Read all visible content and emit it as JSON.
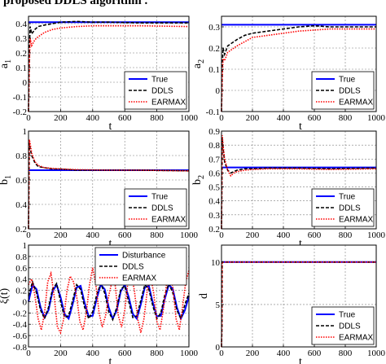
{
  "caption": "proposed DDLS algorithm .",
  "colors": {
    "true": "#0000ff",
    "ddls": "#000000",
    "earmax": "#ff0000",
    "grid": "#7f7f7f"
  },
  "chart_data": [
    {
      "type": "line",
      "id": "a1",
      "xlabel": "t",
      "ylabel": "a",
      "ylabel_sub": "1",
      "xlim": [
        0,
        1000
      ],
      "ylim": [
        -0.2,
        0.45
      ],
      "xticks": [
        0,
        200,
        400,
        600,
        800,
        1000
      ],
      "yticks": [
        -0.2,
        -0.1,
        0,
        0.1,
        0.2,
        0.3,
        0.4
      ],
      "ytick_labels": [
        "-0.2",
        "-0.1",
        "0",
        "0.1",
        "0.2",
        "0.3",
        "0.4"
      ],
      "legend_position": "bottom-right",
      "series": [
        {
          "name": "True",
          "x": [
            0,
            1000
          ],
          "y": [
            0.41,
            0.41
          ]
        },
        {
          "name": "DDLS",
          "x": [
            0,
            5,
            10,
            20,
            40,
            60,
            100,
            150,
            200,
            300,
            400,
            500,
            700,
            1000
          ],
          "y": [
            -0.2,
            0.2,
            0.38,
            0.33,
            0.36,
            0.38,
            0.39,
            0.4,
            0.41,
            0.415,
            0.41,
            0.41,
            0.405,
            0.405
          ]
        },
        {
          "name": "EARMAX",
          "x": [
            0,
            5,
            10,
            20,
            40,
            60,
            100,
            150,
            200,
            300,
            400,
            500,
            700,
            1000
          ],
          "y": [
            -0.2,
            0.1,
            0.3,
            0.25,
            0.29,
            0.31,
            0.34,
            0.36,
            0.37,
            0.38,
            0.385,
            0.385,
            0.385,
            0.38
          ]
        }
      ]
    },
    {
      "type": "line",
      "id": "a2",
      "xlabel": "t",
      "ylabel": "a",
      "ylabel_sub": "2",
      "xlim": [
        0,
        1000
      ],
      "ylim": [
        -0.1,
        0.35
      ],
      "xticks": [
        0,
        200,
        400,
        600,
        800,
        1000
      ],
      "yticks": [
        -0.1,
        0,
        0.1,
        0.2,
        0.3
      ],
      "ytick_labels": [
        "-0.1",
        "0",
        "0.1",
        "0.2",
        "0.3"
      ],
      "legend_position": "bottom-right",
      "series": [
        {
          "name": "True",
          "x": [
            0,
            1000
          ],
          "y": [
            0.31,
            0.31
          ]
        },
        {
          "name": "DDLS",
          "x": [
            0,
            5,
            10,
            20,
            40,
            80,
            100,
            150,
            200,
            300,
            400,
            500,
            600,
            700,
            1000
          ],
          "y": [
            -0.1,
            0.1,
            0.2,
            0.17,
            0.21,
            0.23,
            0.24,
            0.26,
            0.27,
            0.28,
            0.29,
            0.3,
            0.305,
            0.3,
            0.3
          ]
        },
        {
          "name": "EARMAX",
          "x": [
            0,
            5,
            10,
            20,
            40,
            80,
            100,
            150,
            200,
            300,
            400,
            500,
            600,
            700,
            1000
          ],
          "y": [
            -0.1,
            0.05,
            0.15,
            0.14,
            0.18,
            0.2,
            0.21,
            0.23,
            0.25,
            0.26,
            0.27,
            0.28,
            0.285,
            0.29,
            0.29
          ]
        }
      ]
    },
    {
      "type": "line",
      "id": "b1",
      "xlabel": "t",
      "ylabel": "b",
      "ylabel_sub": "1",
      "xlim": [
        0,
        1000
      ],
      "ylim": [
        0.2,
        1.0
      ],
      "xticks": [
        0,
        200,
        400,
        600,
        800,
        1000
      ],
      "yticks": [
        0.2,
        0.4,
        0.6,
        0.8,
        1
      ],
      "ytick_labels": [
        "0.2",
        "0.4",
        "0.6",
        "0.8",
        "1"
      ],
      "legend_position": "bottom-right",
      "series": [
        {
          "name": "True",
          "x": [
            0,
            1000
          ],
          "y": [
            0.68,
            0.68
          ]
        },
        {
          "name": "DDLS",
          "x": [
            0,
            3,
            5,
            10,
            20,
            40,
            60,
            100,
            150,
            200,
            300,
            500,
            700,
            1000
          ],
          "y": [
            0.2,
            0.6,
            0.9,
            0.86,
            0.8,
            0.74,
            0.71,
            0.7,
            0.69,
            0.69,
            0.68,
            0.68,
            0.68,
            0.675
          ]
        },
        {
          "name": "EARMAX",
          "x": [
            0,
            3,
            5,
            10,
            20,
            40,
            60,
            100,
            150,
            200,
            300,
            500,
            700,
            1000
          ],
          "y": [
            0.2,
            0.6,
            0.93,
            0.9,
            0.82,
            0.75,
            0.72,
            0.7,
            0.695,
            0.69,
            0.685,
            0.68,
            0.68,
            0.675
          ]
        }
      ]
    },
    {
      "type": "line",
      "id": "b2",
      "xlabel": "t",
      "ylabel": "b",
      "ylabel_sub": "2",
      "xlim": [
        0,
        1000
      ],
      "ylim": [
        0.2,
        0.9
      ],
      "xticks": [
        0,
        200,
        400,
        600,
        800,
        1000
      ],
      "yticks": [
        0.2,
        0.3,
        0.4,
        0.5,
        0.6,
        0.7,
        0.8,
        0.9
      ],
      "ytick_labels": [
        "0.2",
        "0.3",
        "0.4",
        "0.5",
        "0.6",
        "0.7",
        "0.8",
        "0.9"
      ],
      "legend_position": "bottom-right",
      "series": [
        {
          "name": "True",
          "x": [
            0,
            1000
          ],
          "y": [
            0.64,
            0.64
          ]
        },
        {
          "name": "DDLS",
          "x": [
            0,
            3,
            5,
            10,
            20,
            40,
            60,
            80,
            100,
            150,
            200,
            300,
            500,
            700,
            1000
          ],
          "y": [
            0.2,
            0.6,
            0.85,
            0.78,
            0.68,
            0.62,
            0.6,
            0.61,
            0.62,
            0.63,
            0.63,
            0.635,
            0.635,
            0.63,
            0.635
          ]
        },
        {
          "name": "EARMAX",
          "x": [
            0,
            3,
            5,
            10,
            20,
            40,
            60,
            80,
            100,
            150,
            200,
            300,
            500,
            700,
            1000
          ],
          "y": [
            0.2,
            0.6,
            0.87,
            0.8,
            0.7,
            0.62,
            0.58,
            0.6,
            0.61,
            0.62,
            0.625,
            0.63,
            0.63,
            0.625,
            0.63
          ]
        }
      ]
    },
    {
      "type": "line",
      "id": "xi",
      "xlabel": "t",
      "ylabel": "ξ(t)",
      "ylabel_sub": "",
      "xlim": [
        0,
        1000
      ],
      "ylim": [
        -0.8,
        1.0
      ],
      "xticks": [
        0,
        200,
        400,
        600,
        800,
        1000
      ],
      "yticks": [
        -0.8,
        -0.6,
        -0.4,
        -0.2,
        0,
        0.2,
        0.4,
        0.6,
        0.8,
        1
      ],
      "ytick_labels": [
        "-0.8",
        "-0.6",
        "-0.4",
        "-0.2",
        "0",
        "0.2",
        "0.4",
        "0.6",
        "0.8",
        "1"
      ],
      "legend_position": "top-right",
      "series": [
        {
          "name": "Disturbance",
          "x": [
            0,
            25,
            50,
            75,
            100,
            125,
            150,
            175,
            200,
            225,
            250,
            275,
            300,
            325,
            350,
            375,
            400,
            425,
            450,
            475,
            500,
            525,
            550,
            575,
            600,
            625,
            650,
            675,
            700,
            725,
            750,
            775,
            800,
            825,
            850,
            875,
            900,
            925,
            950,
            975,
            1000
          ],
          "y": [
            0.0,
            0.3,
            0.22,
            -0.1,
            -0.28,
            -0.15,
            0.18,
            0.3,
            0.08,
            -0.22,
            -0.3,
            -0.05,
            0.25,
            0.28,
            -0.02,
            -0.26,
            -0.25,
            0.05,
            0.3,
            0.22,
            -0.1,
            -0.3,
            -0.15,
            0.18,
            0.3,
            0.08,
            -0.22,
            -0.3,
            -0.05,
            0.25,
            0.28,
            -0.02,
            -0.26,
            -0.25,
            0.05,
            0.3,
            0.22,
            -0.1,
            -0.3,
            -0.15,
            0.1
          ]
        },
        {
          "name": "DDLS",
          "x": [
            0,
            25,
            50,
            75,
            100,
            125,
            150,
            175,
            200,
            225,
            250,
            275,
            300,
            325,
            350,
            375,
            400,
            425,
            450,
            475,
            500,
            525,
            550,
            575,
            600,
            625,
            650,
            675,
            700,
            725,
            750,
            775,
            800,
            825,
            850,
            875,
            900,
            925,
            950,
            975,
            1000
          ],
          "y": [
            0.1,
            0.35,
            0.15,
            -0.15,
            -0.3,
            -0.1,
            0.22,
            0.32,
            0.0,
            -0.28,
            -0.25,
            0.02,
            0.3,
            0.22,
            -0.1,
            -0.3,
            -0.18,
            0.12,
            0.32,
            0.15,
            -0.18,
            -0.32,
            -0.1,
            0.22,
            0.28,
            0.0,
            -0.28,
            -0.25,
            0.02,
            0.3,
            0.22,
            -0.08,
            -0.3,
            -0.2,
            0.12,
            0.32,
            0.15,
            -0.15,
            -0.3,
            -0.05,
            0.15
          ]
        },
        {
          "name": "EARMAX",
          "x": [
            0,
            20,
            40,
            60,
            80,
            100,
            120,
            140,
            160,
            180,
            200,
            220,
            240,
            260,
            280,
            300,
            320,
            340,
            360,
            380,
            400,
            420,
            440,
            460,
            480,
            500,
            520,
            540,
            560,
            580,
            600,
            620,
            640,
            660,
            680,
            700,
            720,
            740,
            760,
            780,
            800,
            820,
            840,
            860,
            880,
            900,
            920,
            940,
            960,
            980,
            1000
          ],
          "y": [
            0.3,
            0.4,
            0.1,
            -0.3,
            -0.5,
            -0.2,
            0.35,
            0.5,
            0.1,
            -0.45,
            -0.55,
            -0.3,
            0.2,
            0.45,
            0.35,
            0.1,
            -0.35,
            -0.5,
            -0.2,
            0.3,
            0.6,
            0.3,
            -0.2,
            -0.45,
            -0.25,
            0.1,
            0.35,
            0.3,
            -0.25,
            -0.45,
            -0.15,
            0.35,
            0.5,
            0.2,
            -0.3,
            -0.55,
            -0.3,
            0.2,
            0.48,
            0.15,
            -0.35,
            -0.5,
            -0.15,
            0.3,
            0.5,
            0.25,
            -0.3,
            -0.5,
            -0.1,
            0.35,
            0.55
          ]
        }
      ]
    },
    {
      "type": "line",
      "id": "d",
      "xlabel": "t",
      "ylabel": "d",
      "ylabel_sub": "",
      "xlim": [
        0,
        1000
      ],
      "ylim": [
        0,
        12
      ],
      "xticks": [
        0,
        200,
        400,
        600,
        800,
        1000
      ],
      "yticks": [
        0,
        5,
        10
      ],
      "ytick_labels": [
        "0",
        "5",
        "10"
      ],
      "legend_position": "bottom-right",
      "series": [
        {
          "name": "True",
          "x": [
            0,
            1000
          ],
          "y": [
            10,
            10
          ]
        },
        {
          "name": "DDLS",
          "x": [
            0,
            3,
            4,
            1000
          ],
          "y": [
            0,
            2.5,
            10,
            10
          ]
        },
        {
          "name": "EARMAX",
          "x": [
            0,
            3,
            4,
            1000
          ],
          "y": [
            0,
            3,
            10,
            10
          ]
        }
      ]
    }
  ]
}
